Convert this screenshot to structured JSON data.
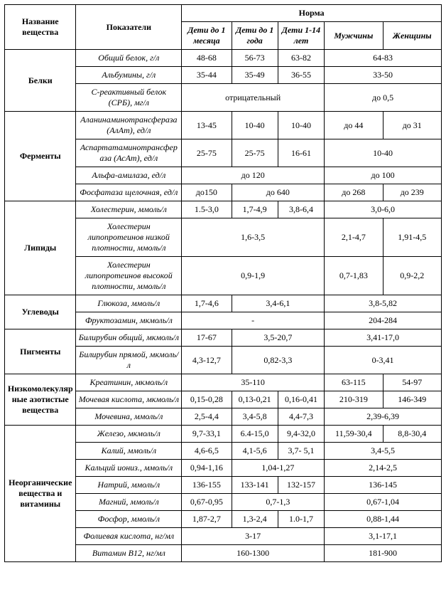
{
  "headers": {
    "substance": "Название вещества",
    "indicator": "Показатели",
    "norm": "Норма",
    "col_children_1m": "Дети до 1 месяца",
    "col_children_1y": "Дети до 1 года",
    "col_children_1_14": "Дети 1-14 лет",
    "col_men": "Мужчины",
    "col_women": "Женщины"
  },
  "groups": {
    "proteins": "Белки",
    "enzymes": "Ферменты",
    "lipids": "Липиды",
    "carbs": "Углеводы",
    "pigments": "Пигменты",
    "nitrogen": "Низкомолекулярные азотистые вещества",
    "inorganic": "Неорганические вещества и витамины"
  },
  "rows": {
    "total_protein": {
      "label": "Общий белок, г/л",
      "v1": "48-68",
      "v2": "56-73",
      "v3": "63-82",
      "vadult": "64-83"
    },
    "albumins": {
      "label": "Альбумины, г/л",
      "v1": "35-44",
      "v2": "35-49",
      "v3": "36-55",
      "vadult": "33-50"
    },
    "crp": {
      "label": "С-реактивный белок (СРБ), мг/л",
      "vchild": "отрицательный",
      "vadult": "до 0,5"
    },
    "alat": {
      "label": "Аланинаминотрансфераза (АлАт), ед/л",
      "v1": "13-45",
      "v2": "10-40",
      "v3": "10-40",
      "vm": "до 44",
      "vw": "до 31"
    },
    "asat": {
      "label": "Аспартатаминотрансфераза (АсАт), ед/л",
      "v1": "25-75",
      "v2": "25-75",
      "v3": "16-61",
      "vadult": "10-40"
    },
    "amylase": {
      "label": "Альфа-амилаза, ед/л",
      "vchild": "до 120",
      "vadult": "до 100"
    },
    "phosphatase": {
      "label": "Фосфатаза щелочная, ед/л",
      "v1": "до150",
      "v23": "до 640",
      "vm": "до 268",
      "vw": "до 239"
    },
    "cholesterol": {
      "label": "Холестерин, ммоль/л",
      "v1": "1.5-3,0",
      "v2": "1,7-4,9",
      "v3": "3,8-6,4",
      "vadult": "3,0-6,0"
    },
    "ldl": {
      "label": "Холестерин липопротеинов низкой плотности, ммоль/л",
      "vchild": "1,6-3,5",
      "vm": "2,1-4,7",
      "vw": "1,91-4,5"
    },
    "hdl": {
      "label": "Холестерин липопротеинов высокой плотности, ммоль/л",
      "vchild": "0,9-1,9",
      "vm": "0,7-1,83",
      "vw": "0,9-2,2"
    },
    "glucose": {
      "label": "Глюкоза, ммоль/л",
      "v1": "1,7-4,6",
      "v23": "3,4-6,1",
      "vadult": "3,8-5,82"
    },
    "fructosamine": {
      "label": "Фруктозамин, мкмоль/л",
      "vchild": "-",
      "vadult": "204-284"
    },
    "bilirubin_total": {
      "label": "Билирубин общий, мкмоль/л",
      "v1": "17-67",
      "v23": "3,5-20,7",
      "vadult": "3,41-17,0"
    },
    "bilirubin_direct": {
      "label": "Билирубин прямой, мкмоль/л",
      "v1": "4,3-12,7",
      "v23": "0,82-3,3",
      "vadult": "0-3,41"
    },
    "creatinine": {
      "label": "Креатинин, мкмоль/л",
      "vchild": "35-110",
      "vm": "63-115",
      "vw": "54-97"
    },
    "uric_acid": {
      "label": "Мочевая кислота, мкмоль/л",
      "v1": "0,15-0,28",
      "v2": "0,13-0,21",
      "v3": "0,16-0,41",
      "vm": "210-319",
      "vw": "146-349"
    },
    "urea": {
      "label": "Мочевина, ммоль/л",
      "v1": "2,5-4,4",
      "v2": "3,4-5,8",
      "v3": "4,4-7,3",
      "vadult": "2,39-6,39"
    },
    "iron": {
      "label": "Железо, мкмоль/л",
      "v1": "9,7-33,1",
      "v2": "6.4-15,0",
      "v3": "9,4-32,0",
      "vm": "11,59-30,4",
      "vw": "8,8-30,4"
    },
    "potassium": {
      "label": "Калий, ммоль/л",
      "v1": "4,6-6,5",
      "v2": "4,1-5,6",
      "v3": "3,7- 5,1",
      "vadult": "3,4-5,5"
    },
    "calcium": {
      "label": "Кальций иониз., ммоль/л",
      "v1": "0,94-1,16",
      "v23": "1,04-1,27",
      "vadult": "2,14-2,5"
    },
    "sodium": {
      "label": "Натрий, ммоль/л",
      "v1": "136-155",
      "v2": "133-141",
      "v3": "132-157",
      "vadult": "136-145"
    },
    "magnesium": {
      "label": "Магний, ммоль/л",
      "v1": "0,67-0,95",
      "v23": "0,7-1,3",
      "vadult": "0,67-1,04"
    },
    "phosphorus": {
      "label": "Фосфор, ммоль/л",
      "v1": "1,87-2,7",
      "v2": "1,3-2,4",
      "v3": "1.0-1,7",
      "vadult": "0,88-1,44"
    },
    "folic_acid": {
      "label": "Фолиевая кислота, нг/мл",
      "vchild": "3-17",
      "vadult": "3,1-17,1"
    },
    "b12": {
      "label": "Витамин В12, нг/мл",
      "vchild": "160-1300",
      "vadult": "181-900"
    }
  }
}
